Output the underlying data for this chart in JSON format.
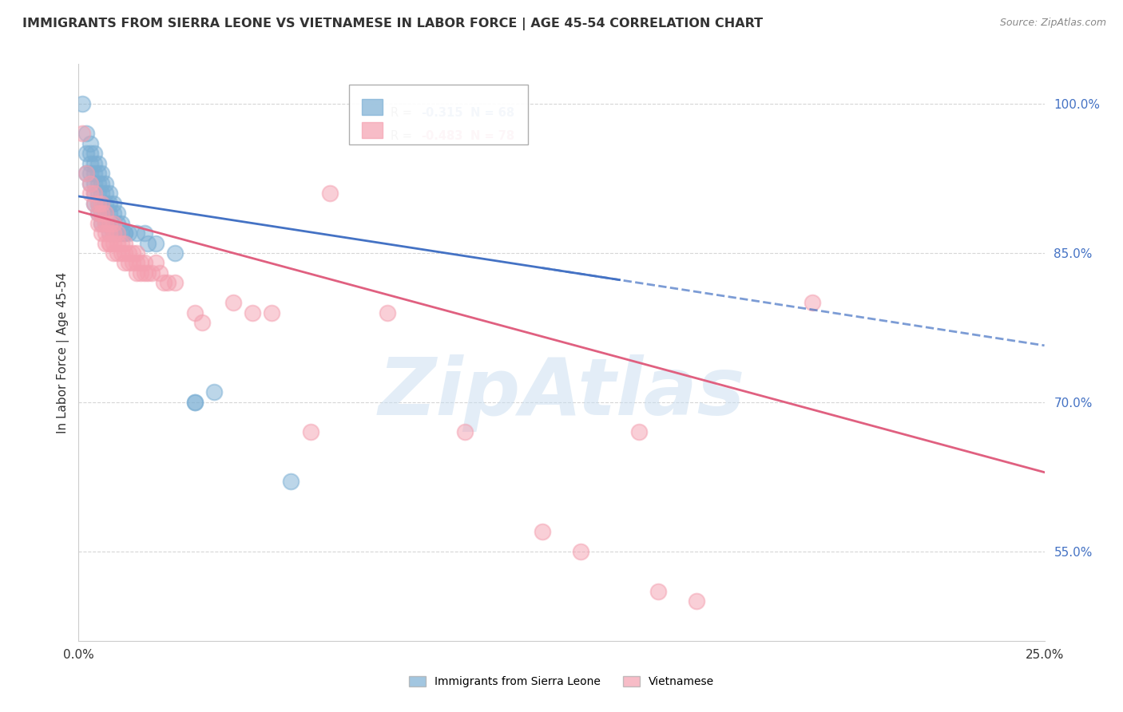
{
  "title": "IMMIGRANTS FROM SIERRA LEONE VS VIETNAMESE IN LABOR FORCE | AGE 45-54 CORRELATION CHART",
  "source": "Source: ZipAtlas.com",
  "ylabel": "In Labor Force | Age 45-54",
  "y_ticks": [
    0.55,
    0.7,
    0.85,
    1.0
  ],
  "y_tick_labels": [
    "55.0%",
    "70.0%",
    "85.0%",
    "100.0%"
  ],
  "x_ticks": [
    0.0,
    0.05,
    0.1,
    0.15,
    0.2,
    0.25
  ],
  "x_tick_labels": [
    "0.0%",
    "",
    "",
    "",
    "",
    "25.0%"
  ],
  "xlim": [
    0.0,
    0.25
  ],
  "ylim": [
    0.46,
    1.04
  ],
  "sierra_leone_R": -0.315,
  "sierra_leone_N": 68,
  "vietnamese_R": -0.483,
  "vietnamese_N": 78,
  "sierra_leone_color": "#7bafd4",
  "vietnamese_color": "#f4a0b0",
  "sierra_leone_line_color": "#4472c4",
  "vietnamese_line_color": "#e06080",
  "watermark": "ZipAtlas",
  "background_color": "#ffffff",
  "grid_color": "#cccccc",
  "sierra_leone_points": [
    [
      0.001,
      1.0
    ],
    [
      0.002,
      0.97
    ],
    [
      0.002,
      0.95
    ],
    [
      0.002,
      0.93
    ],
    [
      0.003,
      0.96
    ],
    [
      0.003,
      0.95
    ],
    [
      0.003,
      0.94
    ],
    [
      0.003,
      0.93
    ],
    [
      0.003,
      0.92
    ],
    [
      0.004,
      0.95
    ],
    [
      0.004,
      0.94
    ],
    [
      0.004,
      0.93
    ],
    [
      0.004,
      0.92
    ],
    [
      0.004,
      0.91
    ],
    [
      0.004,
      0.9
    ],
    [
      0.005,
      0.94
    ],
    [
      0.005,
      0.93
    ],
    [
      0.005,
      0.92
    ],
    [
      0.005,
      0.91
    ],
    [
      0.005,
      0.9
    ],
    [
      0.005,
      0.89
    ],
    [
      0.006,
      0.93
    ],
    [
      0.006,
      0.92
    ],
    [
      0.006,
      0.91
    ],
    [
      0.006,
      0.9
    ],
    [
      0.006,
      0.89
    ],
    [
      0.006,
      0.88
    ],
    [
      0.007,
      0.92
    ],
    [
      0.007,
      0.91
    ],
    [
      0.007,
      0.9
    ],
    [
      0.007,
      0.89
    ],
    [
      0.007,
      0.88
    ],
    [
      0.008,
      0.91
    ],
    [
      0.008,
      0.9
    ],
    [
      0.008,
      0.89
    ],
    [
      0.008,
      0.88
    ],
    [
      0.008,
      0.87
    ],
    [
      0.009,
      0.9
    ],
    [
      0.009,
      0.89
    ],
    [
      0.009,
      0.88
    ],
    [
      0.009,
      0.87
    ],
    [
      0.01,
      0.89
    ],
    [
      0.01,
      0.88
    ],
    [
      0.01,
      0.87
    ],
    [
      0.011,
      0.88
    ],
    [
      0.011,
      0.87
    ],
    [
      0.012,
      0.87
    ],
    [
      0.012,
      0.87
    ],
    [
      0.013,
      0.87
    ],
    [
      0.015,
      0.87
    ],
    [
      0.017,
      0.87
    ],
    [
      0.018,
      0.86
    ],
    [
      0.02,
      0.86
    ],
    [
      0.025,
      0.85
    ],
    [
      0.03,
      0.7
    ],
    [
      0.03,
      0.7
    ],
    [
      0.035,
      0.71
    ],
    [
      0.055,
      0.62
    ]
  ],
  "vietnamese_points": [
    [
      0.001,
      0.97
    ],
    [
      0.002,
      0.93
    ],
    [
      0.003,
      0.92
    ],
    [
      0.003,
      0.91
    ],
    [
      0.004,
      0.91
    ],
    [
      0.004,
      0.9
    ],
    [
      0.005,
      0.9
    ],
    [
      0.005,
      0.89
    ],
    [
      0.005,
      0.88
    ],
    [
      0.006,
      0.9
    ],
    [
      0.006,
      0.89
    ],
    [
      0.006,
      0.88
    ],
    [
      0.006,
      0.87
    ],
    [
      0.007,
      0.89
    ],
    [
      0.007,
      0.88
    ],
    [
      0.007,
      0.87
    ],
    [
      0.007,
      0.86
    ],
    [
      0.008,
      0.88
    ],
    [
      0.008,
      0.87
    ],
    [
      0.008,
      0.86
    ],
    [
      0.008,
      0.86
    ],
    [
      0.009,
      0.88
    ],
    [
      0.009,
      0.87
    ],
    [
      0.009,
      0.86
    ],
    [
      0.009,
      0.85
    ],
    [
      0.01,
      0.87
    ],
    [
      0.01,
      0.86
    ],
    [
      0.01,
      0.85
    ],
    [
      0.011,
      0.86
    ],
    [
      0.011,
      0.85
    ],
    [
      0.012,
      0.86
    ],
    [
      0.012,
      0.85
    ],
    [
      0.012,
      0.84
    ],
    [
      0.013,
      0.85
    ],
    [
      0.013,
      0.84
    ],
    [
      0.014,
      0.85
    ],
    [
      0.014,
      0.84
    ],
    [
      0.015,
      0.85
    ],
    [
      0.015,
      0.84
    ],
    [
      0.015,
      0.83
    ],
    [
      0.016,
      0.84
    ],
    [
      0.016,
      0.83
    ],
    [
      0.017,
      0.84
    ],
    [
      0.017,
      0.83
    ],
    [
      0.018,
      0.83
    ],
    [
      0.019,
      0.83
    ],
    [
      0.02,
      0.84
    ],
    [
      0.021,
      0.83
    ],
    [
      0.022,
      0.82
    ],
    [
      0.023,
      0.82
    ],
    [
      0.025,
      0.82
    ],
    [
      0.03,
      0.79
    ],
    [
      0.032,
      0.78
    ],
    [
      0.04,
      0.8
    ],
    [
      0.045,
      0.79
    ],
    [
      0.05,
      0.79
    ],
    [
      0.06,
      0.67
    ],
    [
      0.065,
      0.91
    ],
    [
      0.08,
      0.79
    ],
    [
      0.1,
      0.67
    ],
    [
      0.12,
      0.57
    ],
    [
      0.13,
      0.55
    ],
    [
      0.145,
      0.67
    ],
    [
      0.15,
      0.51
    ],
    [
      0.16,
      0.5
    ],
    [
      0.19,
      0.8
    ]
  ]
}
